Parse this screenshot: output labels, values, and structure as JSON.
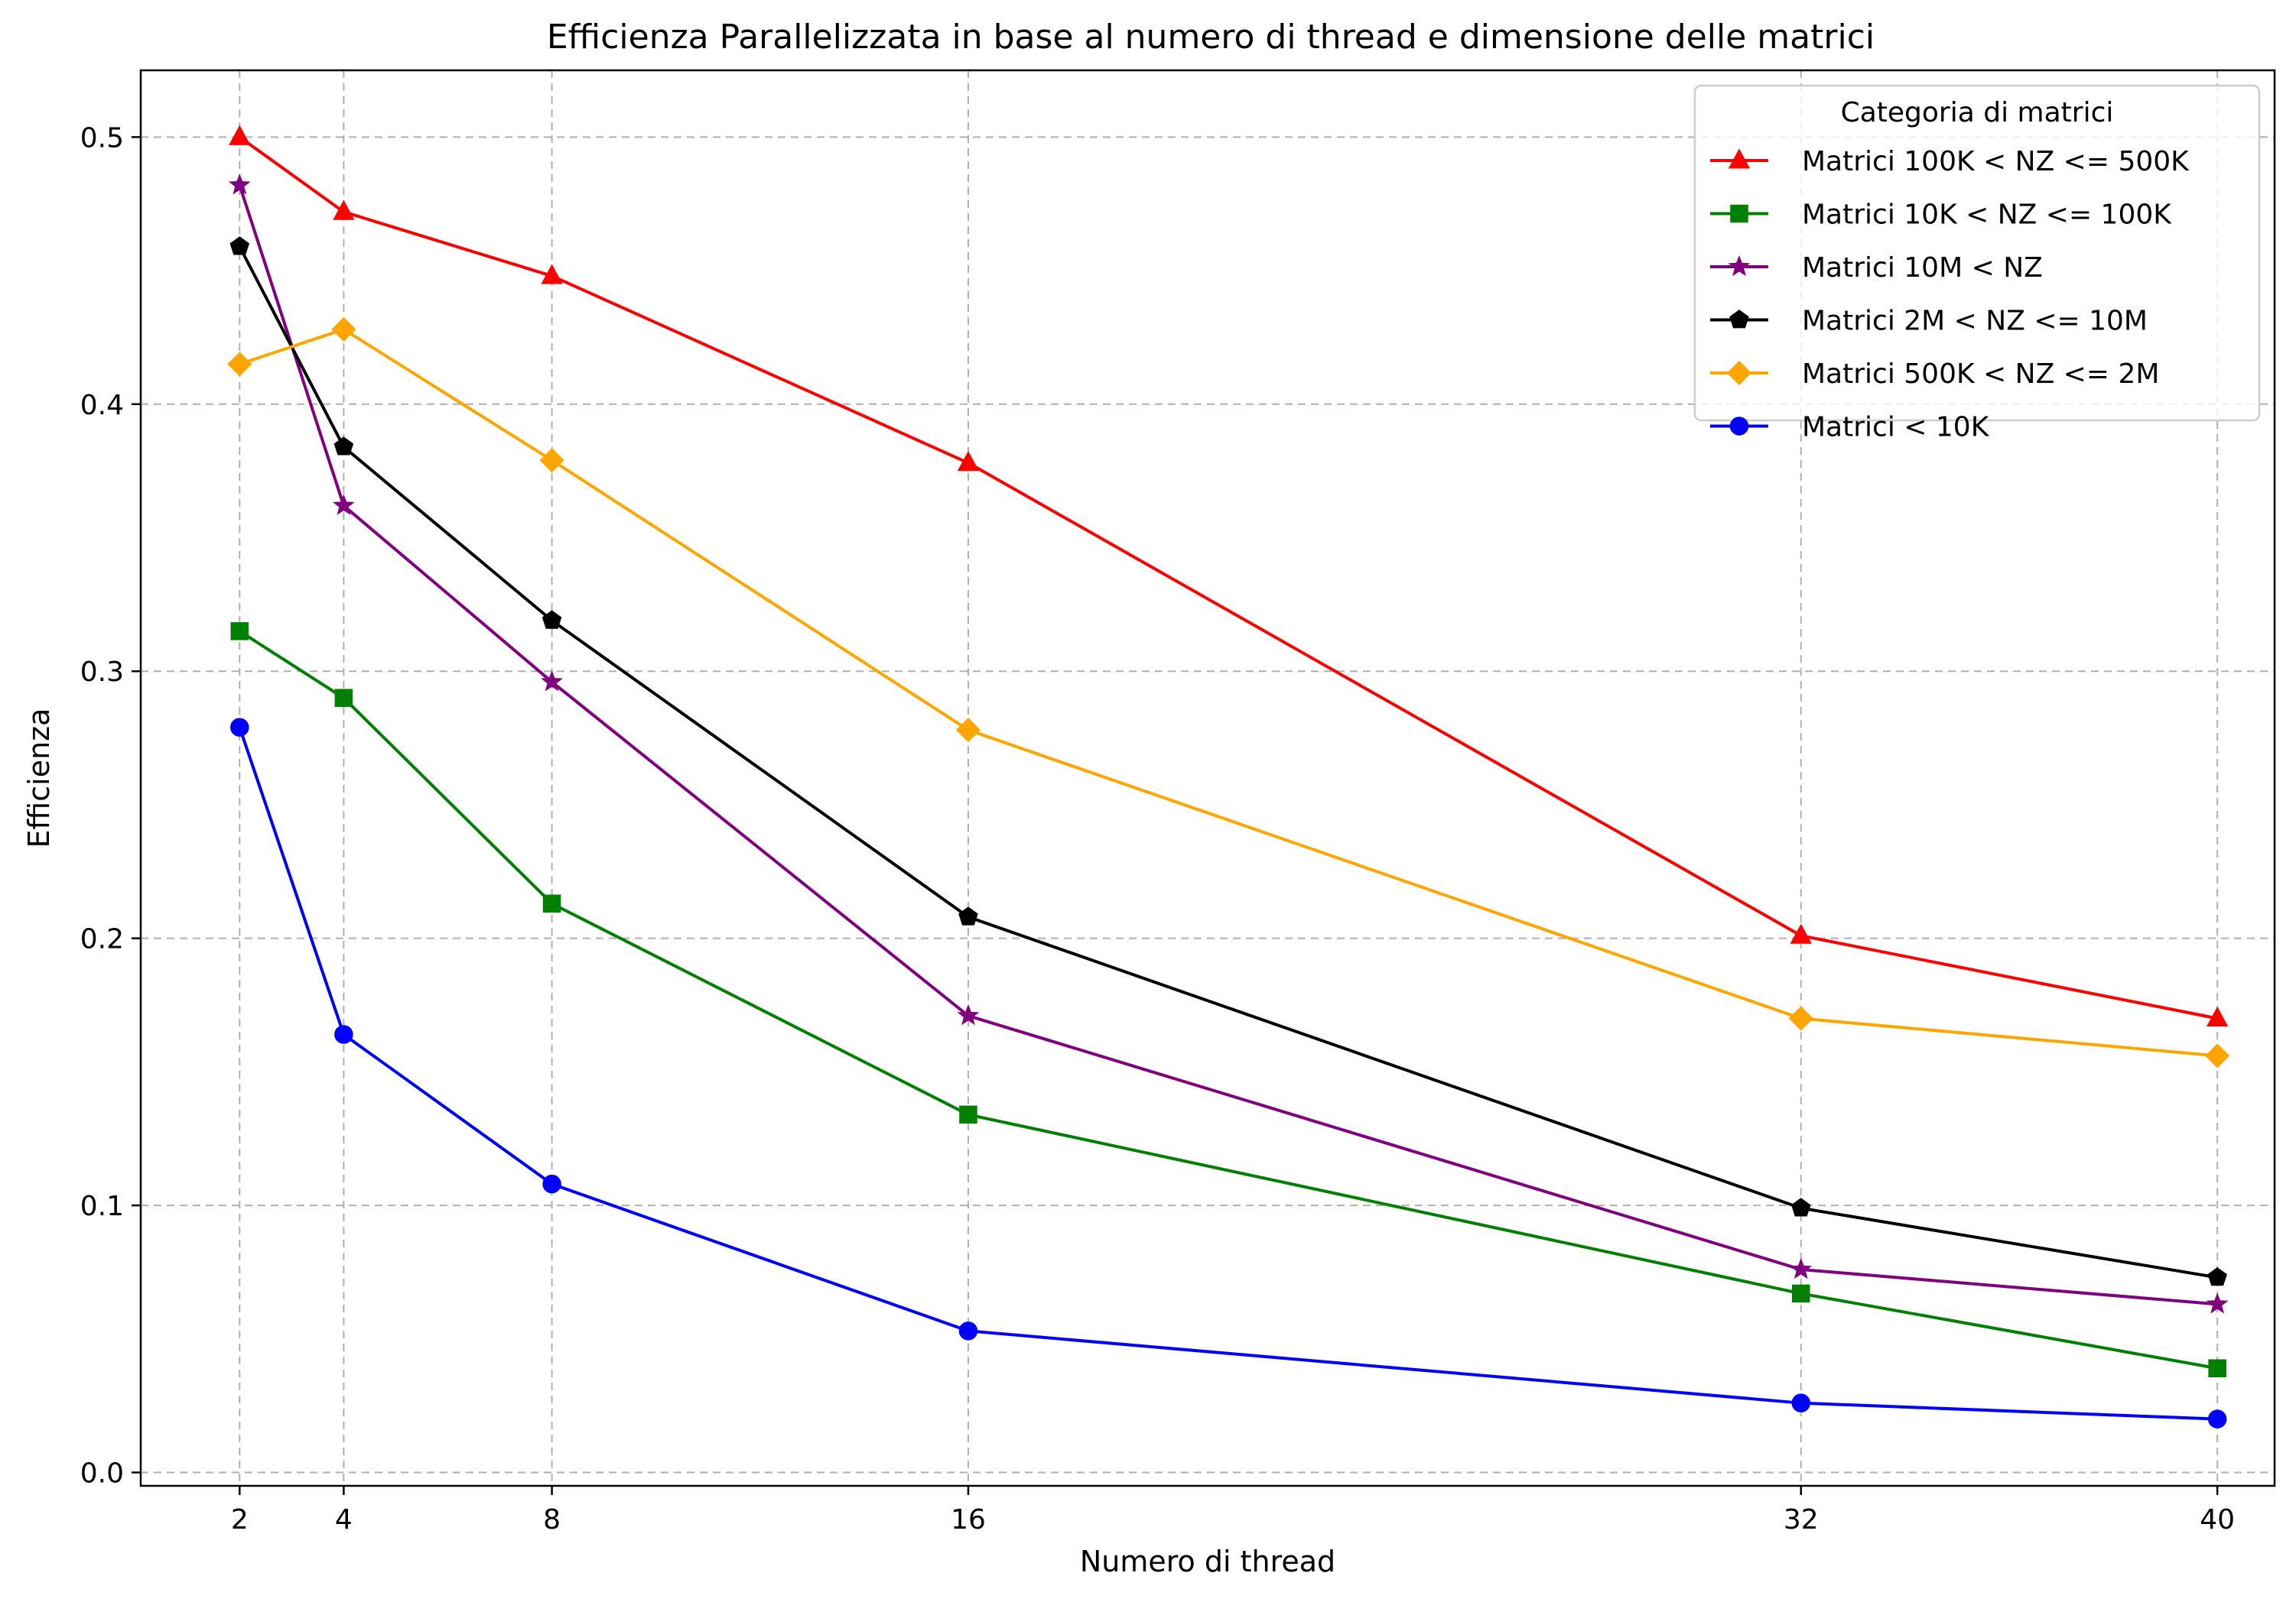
{
  "chart_data": {
    "type": "line",
    "title": "Efficienza Parallelizzata in base al numero di thread e dimensione delle matrici",
    "xlabel": "Numero di thread",
    "ylabel": "Efficienza",
    "x": [
      2,
      4,
      8,
      16,
      32,
      40
    ],
    "x_ticks": [
      "2",
      "4",
      "8",
      "16",
      "32",
      "40"
    ],
    "y_ticks": [
      "0.0",
      "0.1",
      "0.2",
      "0.3",
      "0.4",
      "0.5"
    ],
    "xlim": [
      0.1,
      41.1
    ],
    "ylim": [
      -0.005,
      0.525
    ],
    "grid": true,
    "legend": {
      "title": "Categoria di matrici",
      "position": "top-right"
    },
    "series": [
      {
        "name": "Matrici 100K < NZ <= 500K",
        "color": "#ff0000",
        "marker": "triangle",
        "values": [
          0.5,
          0.472,
          0.448,
          0.378,
          0.201,
          0.17
        ]
      },
      {
        "name": "Matrici 10K < NZ <= 100K",
        "color": "#008000",
        "marker": "square",
        "values": [
          0.315,
          0.29,
          0.213,
          0.134,
          0.067,
          0.039
        ]
      },
      {
        "name": "Matrici 10M < NZ",
        "color": "#800080",
        "marker": "star",
        "values": [
          0.482,
          0.362,
          0.296,
          0.171,
          0.076,
          0.063
        ]
      },
      {
        "name": "Matrici 2M < NZ <= 10M",
        "color": "#000000",
        "marker": "pentagon",
        "values": [
          0.459,
          0.384,
          0.319,
          0.208,
          0.099,
          0.073
        ]
      },
      {
        "name": "Matrici 500K < NZ <= 2M",
        "color": "#ffa500",
        "marker": "diamond",
        "values": [
          0.415,
          0.428,
          0.379,
          0.278,
          0.17,
          0.156
        ]
      },
      {
        "name": "Matrici < 10K",
        "color": "#0000ff",
        "marker": "circle",
        "values": [
          0.279,
          0.164,
          0.108,
          0.053,
          0.026,
          0.02
        ]
      }
    ]
  }
}
